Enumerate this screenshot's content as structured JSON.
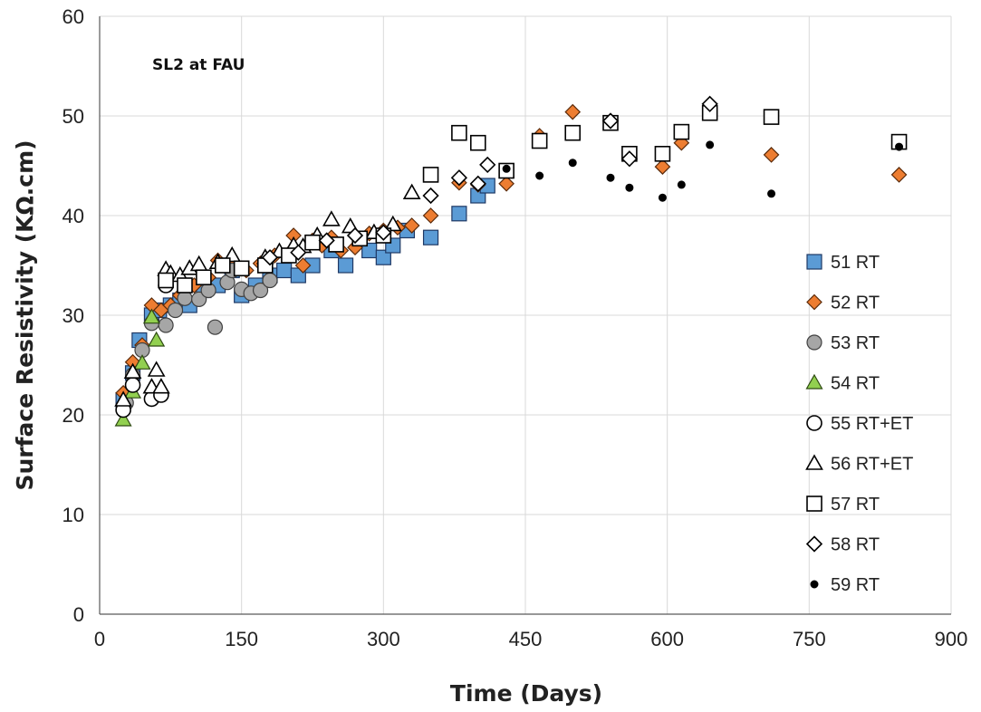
{
  "chart_data": {
    "type": "scatter",
    "annotation": "SL2 at FAU",
    "xlabel": "Time (Days)",
    "ylabel": "Surface  Resistivity (KΩ.cm)",
    "xlim": [
      0,
      900
    ],
    "ylim": [
      0,
      60
    ],
    "xticks": [
      0,
      150,
      300,
      450,
      600,
      750,
      900
    ],
    "yticks": [
      0,
      10,
      20,
      30,
      40,
      50,
      60
    ],
    "grid": true,
    "legend_position": "right",
    "series": [
      {
        "name": "51 RT",
        "marker": "square",
        "fill": "#5b9bd5",
        "stroke": "#1f3864",
        "points": [
          [
            25,
            21.5
          ],
          [
            35,
            24.2
          ],
          [
            42,
            27.5
          ],
          [
            55,
            30
          ],
          [
            63,
            30.5
          ],
          [
            75,
            31
          ],
          [
            85,
            31.5
          ],
          [
            95,
            31
          ],
          [
            110,
            32.5
          ],
          [
            125,
            33
          ],
          [
            140,
            34.5
          ],
          [
            150,
            32
          ],
          [
            165,
            33
          ],
          [
            180,
            34
          ],
          [
            195,
            34.5
          ],
          [
            210,
            34
          ],
          [
            225,
            35
          ],
          [
            245,
            36.5
          ],
          [
            260,
            35
          ],
          [
            285,
            36.5
          ],
          [
            300,
            35.8
          ],
          [
            310,
            37
          ],
          [
            325,
            38.5
          ],
          [
            350,
            37.8
          ],
          [
            380,
            40.2
          ],
          [
            400,
            42
          ],
          [
            410,
            43
          ]
        ]
      },
      {
        "name": "52 RT",
        "marker": "diamond",
        "fill": "#ed7d31",
        "stroke": "#5a2a0a",
        "points": [
          [
            25,
            22.2
          ],
          [
            35,
            25.3
          ],
          [
            45,
            27
          ],
          [
            55,
            31
          ],
          [
            65,
            30.5
          ],
          [
            75,
            31
          ],
          [
            85,
            32
          ],
          [
            100,
            33
          ],
          [
            115,
            33.8
          ],
          [
            125,
            35.5
          ],
          [
            140,
            35
          ],
          [
            155,
            34.5
          ],
          [
            170,
            35.2
          ],
          [
            185,
            36
          ],
          [
            200,
            36.2
          ],
          [
            205,
            38
          ],
          [
            215,
            35
          ],
          [
            225,
            37.5
          ],
          [
            235,
            37
          ],
          [
            245,
            37.8
          ],
          [
            255,
            36.5
          ],
          [
            270,
            36.8
          ],
          [
            285,
            38.2
          ],
          [
            300,
            38.5
          ],
          [
            315,
            38.8
          ],
          [
            330,
            39
          ],
          [
            350,
            40
          ],
          [
            380,
            43.3
          ],
          [
            400,
            43.1
          ],
          [
            430,
            43.2
          ],
          [
            465,
            48
          ],
          [
            500,
            50.4
          ],
          [
            540,
            49.5
          ],
          [
            560,
            45.9
          ],
          [
            595,
            44.9
          ],
          [
            615,
            47.3
          ],
          [
            645,
            51
          ],
          [
            710,
            46.1
          ],
          [
            845,
            44.1
          ]
        ]
      },
      {
        "name": "53 RT",
        "marker": "circle",
        "fill": "#a6a6a6",
        "stroke": "#404040",
        "points": [
          [
            28,
            21.2
          ],
          [
            35,
            24
          ],
          [
            45,
            26.5
          ],
          [
            55,
            29.2
          ],
          [
            70,
            29
          ],
          [
            80,
            30.5
          ],
          [
            90,
            31.7
          ],
          [
            105,
            31.6
          ],
          [
            115,
            32.5
          ],
          [
            122,
            28.8
          ],
          [
            135,
            33.3
          ],
          [
            140,
            34.5
          ],
          [
            150,
            32.6
          ],
          [
            160,
            32.2
          ],
          [
            170,
            32.5
          ],
          [
            180,
            33.5
          ]
        ]
      },
      {
        "name": "54 RT",
        "marker": "triangle",
        "fill": "#92d050",
        "stroke": "#2e4a12",
        "points": [
          [
            25,
            19.5
          ],
          [
            35,
            22.3
          ],
          [
            45,
            25.2
          ],
          [
            55,
            29.8
          ],
          [
            60,
            27.5
          ]
        ]
      },
      {
        "name": "55 RT+ET",
        "marker": "circle-open",
        "fill": "#ffffff",
        "stroke": "#000000",
        "points": [
          [
            25,
            20.5
          ],
          [
            35,
            23
          ],
          [
            55,
            21.6
          ],
          [
            65,
            22
          ],
          [
            70,
            33
          ]
        ]
      },
      {
        "name": "56 RT+ET",
        "marker": "triangle-open",
        "fill": "#ffffff",
        "stroke": "#000000",
        "points": [
          [
            25,
            21.5
          ],
          [
            35,
            24.3
          ],
          [
            55,
            22.8
          ],
          [
            60,
            24.5
          ],
          [
            65,
            22.8
          ],
          [
            70,
            34.6
          ],
          [
            75,
            34.2
          ],
          [
            85,
            34
          ],
          [
            95,
            34.7
          ],
          [
            105,
            35.1
          ],
          [
            125,
            35.3
          ],
          [
            140,
            36
          ],
          [
            175,
            35.8
          ],
          [
            190,
            36.4
          ],
          [
            205,
            37
          ],
          [
            215,
            36.9
          ],
          [
            230,
            38
          ],
          [
            245,
            39.6
          ],
          [
            265,
            38.9
          ],
          [
            290,
            38.3
          ],
          [
            310,
            39.1
          ],
          [
            330,
            42.3
          ]
        ]
      },
      {
        "name": "57 RT",
        "marker": "square-open",
        "fill": "#ffffff",
        "stroke": "#000000",
        "points": [
          [
            70,
            33.5
          ],
          [
            90,
            33
          ],
          [
            110,
            33.8
          ],
          [
            130,
            35
          ],
          [
            150,
            34.7
          ],
          [
            175,
            35
          ],
          [
            200,
            36
          ],
          [
            225,
            37.3
          ],
          [
            250,
            37.1
          ],
          [
            275,
            37.7
          ],
          [
            300,
            38
          ],
          [
            350,
            44.1
          ],
          [
            380,
            48.3
          ],
          [
            400,
            47.3
          ],
          [
            430,
            44.5
          ],
          [
            465,
            47.5
          ],
          [
            500,
            48.3
          ],
          [
            540,
            49.3
          ],
          [
            560,
            46.2
          ],
          [
            595,
            46.2
          ],
          [
            615,
            48.4
          ],
          [
            645,
            50.3
          ],
          [
            710,
            49.9
          ],
          [
            845,
            47.4
          ]
        ]
      },
      {
        "name": "58 RT",
        "marker": "diamond-open",
        "fill": "#ffffff",
        "stroke": "#000000",
        "points": [
          [
            180,
            35.8
          ],
          [
            210,
            36.3
          ],
          [
            240,
            37.5
          ],
          [
            270,
            38
          ],
          [
            300,
            38.3
          ],
          [
            350,
            42
          ],
          [
            380,
            43.8
          ],
          [
            400,
            43.2
          ],
          [
            410,
            45.1
          ],
          [
            540,
            49.5
          ],
          [
            560,
            45.7
          ],
          [
            645,
            51.2
          ]
        ]
      },
      {
        "name": "59 RT",
        "marker": "dot",
        "fill": "#000000",
        "stroke": "#000000",
        "points": [
          [
            430,
            44.7
          ],
          [
            465,
            44
          ],
          [
            500,
            45.3
          ],
          [
            540,
            43.8
          ],
          [
            560,
            42.8
          ],
          [
            595,
            41.8
          ],
          [
            615,
            43.1
          ],
          [
            645,
            47.1
          ],
          [
            710,
            42.2
          ],
          [
            845,
            46.9
          ]
        ]
      }
    ]
  }
}
